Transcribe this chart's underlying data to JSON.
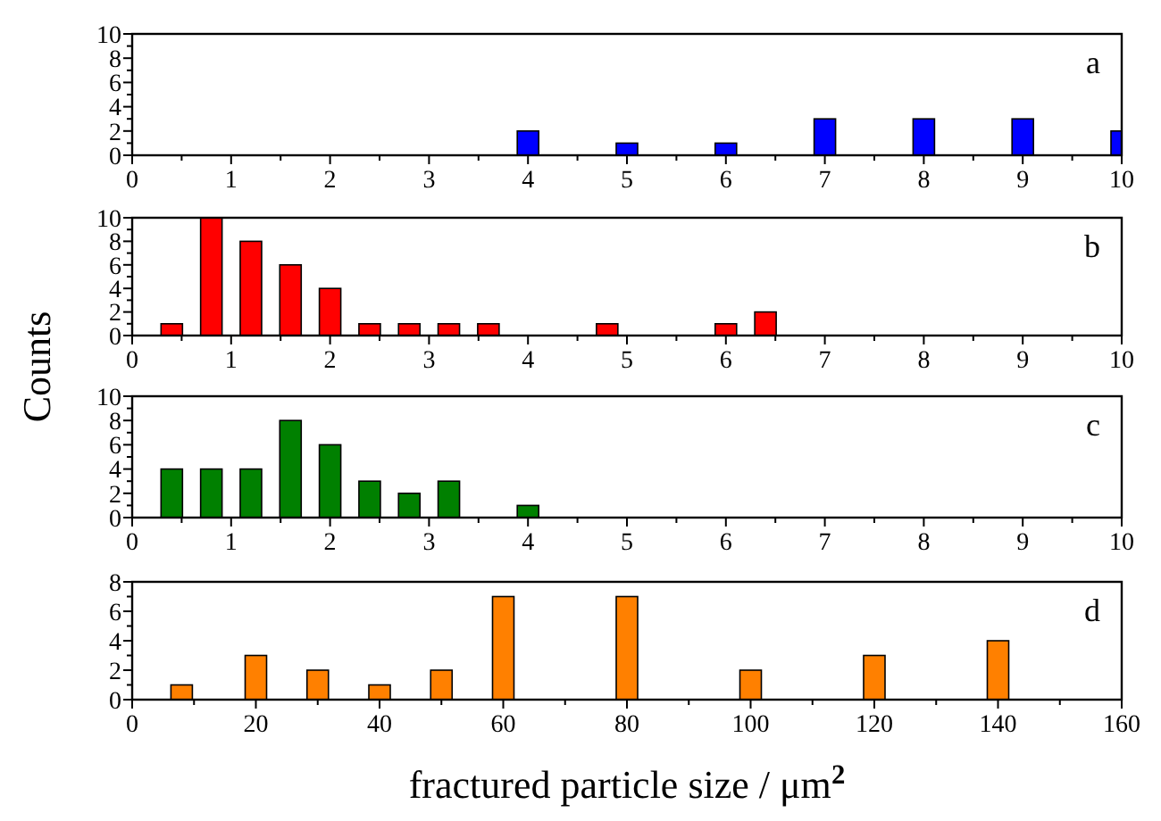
{
  "chart_data": [
    {
      "type": "bar",
      "annotations": [
        "a"
      ],
      "x": [
        4,
        5,
        6,
        7,
        8,
        9,
        10
      ],
      "values": [
        2,
        1,
        1,
        3,
        3,
        3,
        2
      ],
      "color": "#0000ff",
      "xlim": [
        0,
        10
      ],
      "ylim": [
        0,
        10
      ],
      "xticks": [
        0,
        {
          "value": 0.5,
          "label": null
        },
        1,
        {
          "value": 1.5,
          "label": null
        },
        2,
        {
          "value": 2.5,
          "label": null
        },
        3,
        {
          "value": 3.5,
          "label": null
        },
        4,
        {
          "value": 4.5,
          "label": null
        },
        5,
        {
          "value": 5.5,
          "label": null
        },
        6,
        {
          "value": 6.5,
          "label": null
        },
        7,
        {
          "value": 7.5,
          "label": null
        },
        8,
        {
          "value": 8.5,
          "label": null
        },
        9,
        {
          "value": 9.5,
          "label": null
        },
        10
      ],
      "yticks": [
        0,
        {
          "value": 1,
          "label": null
        },
        2,
        {
          "value": 3,
          "label": null
        },
        4,
        {
          "value": 5,
          "label": null
        },
        6,
        {
          "value": 7,
          "label": null
        },
        8,
        {
          "value": 9,
          "label": null
        },
        10
      ]
    },
    {
      "type": "bar",
      "annotations": [
        "b"
      ],
      "ylabel": "Counts",
      "x": [
        0.4,
        0.8,
        1.2,
        1.6,
        2.0,
        2.4,
        2.8,
        3.2,
        3.6,
        4.8,
        6.0,
        6.4
      ],
      "values": [
        1,
        10,
        8,
        6,
        4,
        1,
        1,
        1,
        1,
        1,
        1,
        2
      ],
      "color": "#ff0000",
      "xlim": [
        0,
        10
      ],
      "ylim": [
        0,
        10
      ],
      "xticks": [
        0,
        {
          "value": 0.5,
          "label": null
        },
        1,
        {
          "value": 1.5,
          "label": null
        },
        2,
        {
          "value": 2.5,
          "label": null
        },
        3,
        {
          "value": 3.5,
          "label": null
        },
        4,
        {
          "value": 4.5,
          "label": null
        },
        5,
        {
          "value": 5.5,
          "label": null
        },
        6,
        {
          "value": 6.5,
          "label": null
        },
        7,
        {
          "value": 7.5,
          "label": null
        },
        8,
        {
          "value": 8.5,
          "label": null
        },
        9,
        {
          "value": 9.5,
          "label": null
        },
        10
      ],
      "yticks": [
        0,
        {
          "value": 1,
          "label": null
        },
        2,
        {
          "value": 3,
          "label": null
        },
        4,
        {
          "value": 5,
          "label": null
        },
        6,
        {
          "value": 7,
          "label": null
        },
        8,
        {
          "value": 9,
          "label": null
        },
        10
      ]
    },
    {
      "type": "bar",
      "annotations": [
        "c"
      ],
      "x": [
        0.4,
        0.8,
        1.2,
        1.6,
        2.0,
        2.4,
        2.8,
        3.2,
        4.0
      ],
      "values": [
        4,
        4,
        4,
        8,
        6,
        3,
        2,
        3,
        1
      ],
      "color": "#008000",
      "xlim": [
        0,
        10
      ],
      "ylim": [
        0,
        10
      ],
      "xticks": [
        0,
        {
          "value": 0.5,
          "label": null
        },
        1,
        {
          "value": 1.5,
          "label": null
        },
        2,
        {
          "value": 2.5,
          "label": null
        },
        3,
        {
          "value": 3.5,
          "label": null
        },
        4,
        {
          "value": 4.5,
          "label": null
        },
        5,
        {
          "value": 5.5,
          "label": null
        },
        6,
        {
          "value": 6.5,
          "label": null
        },
        7,
        {
          "value": 7.5,
          "label": null
        },
        8,
        {
          "value": 8.5,
          "label": null
        },
        9,
        {
          "value": 9.5,
          "label": null
        },
        10
      ],
      "yticks": [
        0,
        {
          "value": 1,
          "label": null
        },
        2,
        {
          "value": 3,
          "label": null
        },
        4,
        {
          "value": 5,
          "label": null
        },
        6,
        {
          "value": 7,
          "label": null
        },
        8,
        {
          "value": 9,
          "label": null
        },
        10
      ]
    },
    {
      "type": "bar",
      "annotations": [
        "d"
      ],
      "xlabel": "fractured particle size / μm$^{2}$",
      "x": [
        8,
        20,
        30,
        40,
        50,
        60,
        80,
        100,
        120,
        140
      ],
      "values": [
        1,
        3,
        2,
        1,
        2,
        7,
        7,
        2,
        3,
        4
      ],
      "color": "#ff8000",
      "xlim": [
        0,
        160
      ],
      "ylim": [
        0,
        8
      ],
      "xticks": [
        0,
        {
          "value": 10,
          "label": null
        },
        20,
        {
          "value": 30,
          "label": null
        },
        40,
        {
          "value": 50,
          "label": null
        },
        60,
        {
          "value": 70,
          "label": null
        },
        80,
        {
          "value": 90,
          "label": null
        },
        100,
        {
          "value": 110,
          "label": null
        },
        120,
        {
          "value": 130,
          "label": null
        },
        140,
        {
          "value": 150,
          "label": null
        },
        160
      ],
      "yticks": [
        0,
        {
          "value": 1,
          "label": null
        },
        2,
        {
          "value": 3,
          "label": null
        },
        4,
        {
          "value": 5,
          "label": null
        },
        6,
        {
          "value": 7,
          "label": null
        },
        8
      ]
    }
  ]
}
